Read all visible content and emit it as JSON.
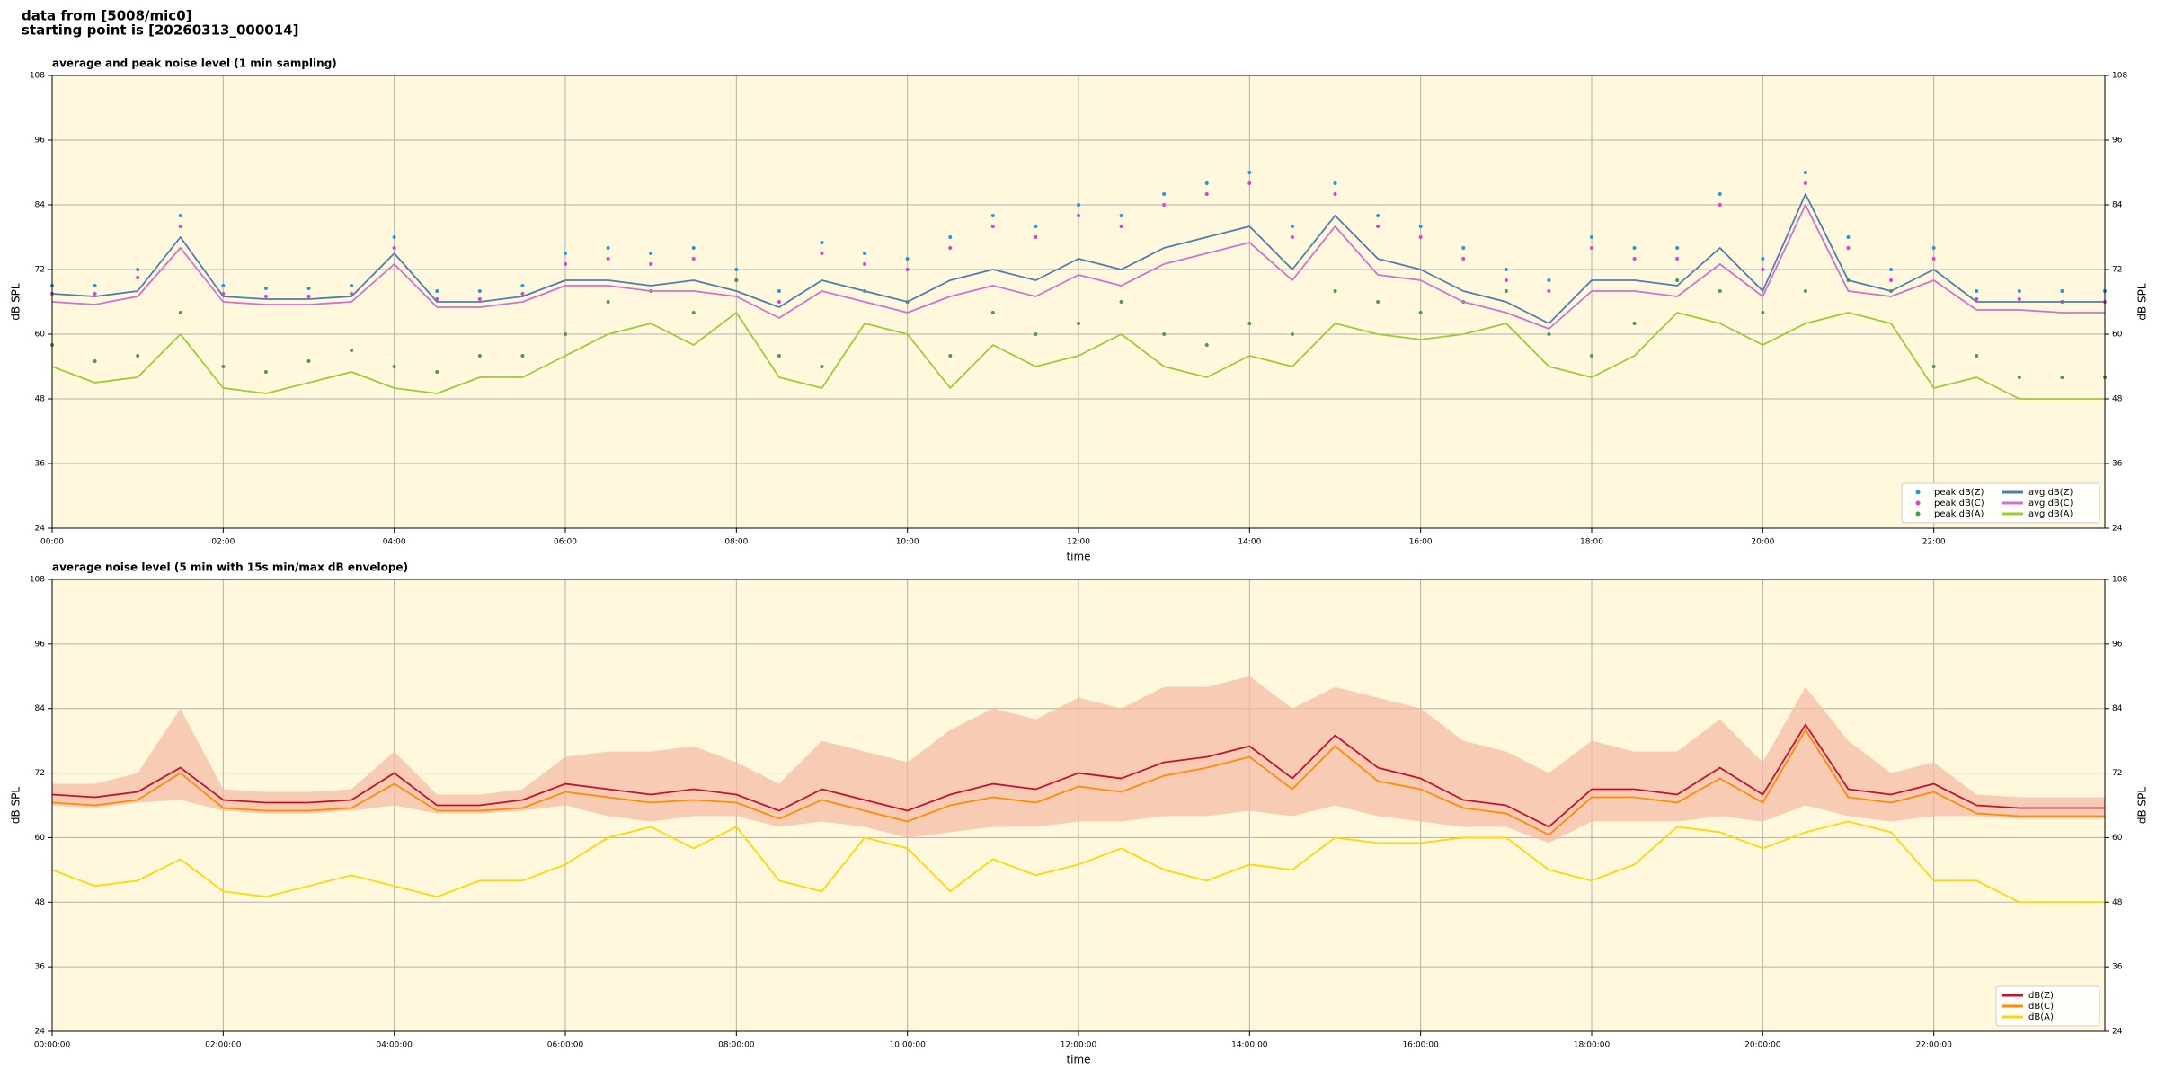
{
  "header": {
    "lines": [
      "data from [5008/mic0]",
      "starting point is [20260313_000014]"
    ]
  },
  "chart_data": [
    {
      "type": "line",
      "title": "average and peak noise level (1 min sampling)",
      "xlabel": "time",
      "ylabel": "dB SPL",
      "y2label": "dB SPL",
      "background": "#fff8dc",
      "grid": true,
      "legend": "lower right",
      "legend_ncol": 2,
      "xlim": [
        0,
        24
      ],
      "xticks": [
        {
          "value": 0,
          "label": "00:00"
        },
        {
          "value": 2,
          "label": "02:00"
        },
        {
          "value": 4,
          "label": "04:00"
        },
        {
          "value": 6,
          "label": "06:00"
        },
        {
          "value": 8,
          "label": "08:00"
        },
        {
          "value": 10,
          "label": "10:00"
        },
        {
          "value": 12,
          "label": "12:00"
        },
        {
          "value": 14,
          "label": "14:00"
        },
        {
          "value": 16,
          "label": "16:00"
        },
        {
          "value": 18,
          "label": "18:00"
        },
        {
          "value": 20,
          "label": "20:00"
        },
        {
          "value": 22,
          "label": "22:00"
        }
      ],
      "ylim": [
        24,
        108
      ],
      "yticks": [
        24,
        36,
        48,
        60,
        72,
        84,
        96,
        108
      ],
      "y2lim": [
        24,
        108
      ],
      "y2ticks": [
        24,
        36,
        48,
        60,
        72,
        84,
        96,
        108
      ],
      "x": [
        0,
        0.5,
        1,
        1.5,
        2,
        2.5,
        3,
        3.5,
        4,
        4.5,
        5,
        5.5,
        6,
        6.5,
        7,
        7.5,
        8,
        8.5,
        9,
        9.5,
        10,
        10.5,
        11,
        11.5,
        12,
        12.5,
        13,
        13.5,
        14,
        14.5,
        15,
        15.5,
        16,
        16.5,
        17,
        17.5,
        18,
        18.5,
        19,
        19.5,
        20,
        20.5,
        21,
        21.5,
        22,
        22.5,
        23,
        23.5,
        24
      ],
      "series": [
        {
          "name": "peak dB(Z)",
          "style": "scatter",
          "color": "#1f9bd6",
          "values": [
            69,
            69,
            72,
            82,
            69,
            68.5,
            68.5,
            69,
            78,
            68,
            68,
            69,
            75,
            76,
            75,
            76,
            72,
            68,
            77,
            75,
            74,
            78,
            82,
            80,
            84,
            82,
            86,
            88,
            90,
            80,
            88,
            82,
            80,
            76,
            72,
            70,
            78,
            76,
            76,
            86,
            74,
            90,
            78,
            72,
            76,
            68,
            68,
            68,
            68
          ]
        },
        {
          "name": "peak dB(C)",
          "style": "scatter",
          "color": "#e040d0",
          "values": [
            67.5,
            67.5,
            70.5,
            80,
            67.5,
            67,
            67,
            67.5,
            76,
            66.5,
            66.5,
            67.5,
            73,
            74,
            73,
            74,
            70,
            66,
            75,
            73,
            72,
            76,
            80,
            78,
            82,
            80,
            84,
            86,
            88,
            78,
            86,
            80,
            78,
            74,
            70,
            68,
            76,
            74,
            74,
            84,
            72,
            88,
            76,
            70,
            74,
            66.5,
            66.5,
            66,
            66
          ]
        },
        {
          "name": "peak dB(A)",
          "style": "scatter",
          "color": "#4c9a4c",
          "values": [
            58,
            55,
            56,
            64,
            54,
            53,
            55,
            57,
            54,
            53,
            56,
            56,
            60,
            66,
            68,
            64,
            70,
            56,
            54,
            68,
            66,
            56,
            64,
            60,
            62,
            66,
            60,
            58,
            62,
            60,
            68,
            66,
            64,
            66,
            68,
            60,
            56,
            62,
            70,
            68,
            64,
            68,
            70,
            68,
            54,
            56,
            52,
            52,
            52
          ]
        },
        {
          "name": "avg dB(Z)",
          "style": "line",
          "color": "#4a7fb0",
          "values": [
            67.5,
            67,
            68,
            78,
            67,
            66.5,
            66.5,
            67,
            75,
            66,
            66,
            67,
            70,
            70,
            69,
            70,
            68,
            65,
            70,
            68,
            66,
            70,
            72,
            70,
            74,
            72,
            76,
            78,
            80,
            72,
            82,
            74,
            72,
            68,
            66,
            62,
            70,
            70,
            69,
            76,
            68,
            86,
            70,
            68,
            72,
            66,
            66,
            66,
            66
          ]
        },
        {
          "name": "avg dB(C)",
          "style": "line",
          "color": "#d070d0",
          "values": [
            66,
            65.5,
            67,
            76,
            66,
            65.5,
            65.5,
            66,
            73,
            65,
            65,
            66,
            69,
            69,
            68,
            68,
            67,
            63,
            68,
            66,
            64,
            67,
            69,
            67,
            71,
            69,
            73,
            75,
            77,
            70,
            80,
            71,
            70,
            66,
            64,
            61,
            68,
            68,
            67,
            73,
            67,
            84,
            68,
            67,
            70,
            64.5,
            64.5,
            64,
            64
          ]
        },
        {
          "name": "avg dB(A)",
          "style": "line",
          "color": "#9acd32",
          "values": [
            54,
            51,
            52,
            60,
            50,
            49,
            51,
            53,
            50,
            49,
            52,
            52,
            56,
            60,
            62,
            58,
            64,
            52,
            50,
            62,
            60,
            50,
            58,
            54,
            56,
            60,
            54,
            52,
            56,
            54,
            62,
            60,
            59,
            60,
            62,
            54,
            52,
            56,
            64,
            62,
            58,
            62,
            64,
            62,
            50,
            52,
            48,
            48,
            48
          ]
        }
      ]
    },
    {
      "type": "line",
      "title": "average noise level (5 min with 15s min/max dB envelope)",
      "xlabel": "time",
      "ylabel": "dB SPL",
      "y2label": "dB SPL",
      "background": "#fff8dc",
      "grid": true,
      "legend": "lower right",
      "legend_ncol": 1,
      "xlim": [
        0,
        24
      ],
      "xticks": [
        {
          "value": 0,
          "label": "00:00:00"
        },
        {
          "value": 2,
          "label": "02:00:00"
        },
        {
          "value": 4,
          "label": "04:00:00"
        },
        {
          "value": 6,
          "label": "06:00:00"
        },
        {
          "value": 8,
          "label": "08:00:00"
        },
        {
          "value": 10,
          "label": "10:00:00"
        },
        {
          "value": 12,
          "label": "12:00:00"
        },
        {
          "value": 14,
          "label": "14:00:00"
        },
        {
          "value": 16,
          "label": "16:00:00"
        },
        {
          "value": 18,
          "label": "18:00:00"
        },
        {
          "value": 20,
          "label": "20:00:00"
        },
        {
          "value": 22,
          "label": "22:00:00"
        }
      ],
      "ylim": [
        24,
        108
      ],
      "yticks": [
        24,
        36,
        48,
        60,
        72,
        84,
        96,
        108
      ],
      "y2lim": [
        24,
        108
      ],
      "y2ticks": [
        24,
        36,
        48,
        60,
        72,
        84,
        96,
        108
      ],
      "x": [
        0,
        0.5,
        1,
        1.5,
        2,
        2.5,
        3,
        3.5,
        4,
        4.5,
        5,
        5.5,
        6,
        6.5,
        7,
        7.5,
        8,
        8.5,
        9,
        9.5,
        10,
        10.5,
        11,
        11.5,
        12,
        12.5,
        13,
        13.5,
        14,
        14.5,
        15,
        15.5,
        16,
        16.5,
        17,
        17.5,
        18,
        18.5,
        19,
        19.5,
        20,
        20.5,
        21,
        21.5,
        22,
        22.5,
        23,
        23.5,
        24
      ],
      "envelope": {
        "color": "#f5b8a3",
        "upper": [
          70,
          70,
          72,
          84,
          69,
          68.5,
          68.5,
          69,
          76,
          68,
          68,
          69,
          75,
          76,
          76,
          77,
          74,
          70,
          78,
          76,
          74,
          80,
          84,
          82,
          86,
          84,
          88,
          88,
          90,
          84,
          88,
          86,
          84,
          78,
          76,
          72,
          78,
          76,
          76,
          82,
          74,
          88,
          78,
          72,
          74,
          68,
          67.5,
          67.5,
          67.5
        ],
        "lower": [
          66,
          65.5,
          66.5,
          67,
          65,
          64.5,
          64.5,
          65,
          66,
          64.5,
          64.5,
          65,
          66,
          64,
          63,
          64,
          64,
          62,
          63,
          62,
          60,
          61,
          62,
          62,
          63,
          63,
          64,
          64,
          65,
          64,
          66,
          64,
          63,
          62,
          62,
          59,
          63,
          63,
          63,
          64,
          63,
          66,
          64,
          63,
          64,
          64,
          63.5,
          63.5,
          63.5
        ]
      },
      "series": [
        {
          "name": "dB(Z)",
          "style": "line",
          "color": "#c8102e",
          "values": [
            68,
            67.5,
            68.5,
            73,
            67,
            66.5,
            66.5,
            67,
            72,
            66,
            66,
            67,
            70,
            69,
            68,
            69,
            68,
            65,
            69,
            67,
            65,
            68,
            70,
            69,
            72,
            71,
            74,
            75,
            77,
            71,
            79,
            73,
            71,
            67,
            66,
            62,
            69,
            69,
            68,
            73,
            68,
            81,
            69,
            68,
            70,
            66,
            65.5,
            65.5,
            65.5
          ]
        },
        {
          "name": "dB(C)",
          "style": "line",
          "color": "#ff8c00",
          "values": [
            66.5,
            66,
            67,
            72,
            65.5,
            65,
            65,
            65.5,
            70,
            65,
            65,
            65.5,
            68.5,
            67.5,
            66.5,
            67,
            66.5,
            63.5,
            67,
            65,
            63,
            66,
            67.5,
            66.5,
            69.5,
            68.5,
            71.5,
            73,
            75,
            69,
            77,
            70.5,
            69,
            65.5,
            64.5,
            60.5,
            67.5,
            67.5,
            66.5,
            71,
            66.5,
            80,
            67.5,
            66.5,
            68.5,
            64.5,
            64,
            64,
            64
          ]
        },
        {
          "name": "dB(A)",
          "style": "line",
          "color": "#ffd700",
          "values": [
            54,
            51,
            52,
            56,
            50,
            49,
            51,
            53,
            51,
            49,
            52,
            52,
            55,
            60,
            62,
            58,
            62,
            52,
            50,
            60,
            58,
            50,
            56,
            53,
            55,
            58,
            54,
            52,
            55,
            54,
            60,
            59,
            59,
            60,
            60,
            54,
            52,
            55,
            62,
            61,
            58,
            61,
            63,
            61,
            52,
            52,
            48,
            48,
            48
          ]
        }
      ]
    }
  ]
}
